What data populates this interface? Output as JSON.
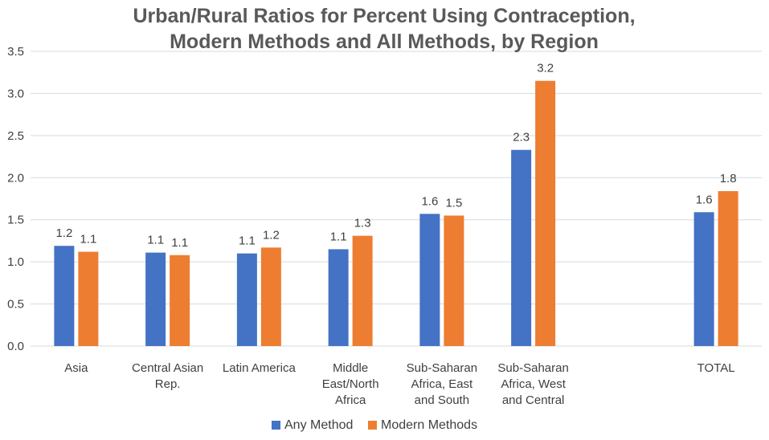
{
  "chart_data": {
    "type": "bar",
    "title": [
      "Urban/Rural Ratios for Percent Using Contraception,",
      "Modern Methods and All Methods, by Region"
    ],
    "xlabel": "",
    "ylabel": "",
    "ylim": [
      0,
      3.5
    ],
    "yticks": [
      "0.0",
      "0.5",
      "1.0",
      "1.5",
      "2.0",
      "2.5",
      "3.0",
      "3.5"
    ],
    "grid": true,
    "legend_position": "bottom",
    "categories": [
      [
        "Asia"
      ],
      [
        "Central Asian",
        "Rep."
      ],
      [
        "Latin America"
      ],
      [
        "Middle",
        "East/North",
        "Africa"
      ],
      [
        "Sub-Saharan",
        "Africa, East",
        "and South"
      ],
      [
        "Sub-Saharan",
        "Africa, West",
        "and Central"
      ],
      [
        ""
      ],
      [
        "TOTAL"
      ]
    ],
    "series": [
      {
        "name": "Any Method",
        "color": "#4472c4",
        "values": [
          1.19,
          1.11,
          1.1,
          1.15,
          1.57,
          2.33,
          null,
          1.59
        ],
        "labels": [
          "1.2",
          "1.1",
          "1.1",
          "1.1",
          "1.6",
          "2.3",
          "",
          "1.6"
        ]
      },
      {
        "name": "Modern Methods",
        "color": "#ed7d31",
        "values": [
          1.12,
          1.08,
          1.17,
          1.31,
          1.55,
          3.15,
          null,
          1.84
        ],
        "labels": [
          "1.1",
          "1.1",
          "1.2",
          "1.3",
          "1.5",
          "3.2",
          "",
          "1.8"
        ]
      }
    ]
  }
}
